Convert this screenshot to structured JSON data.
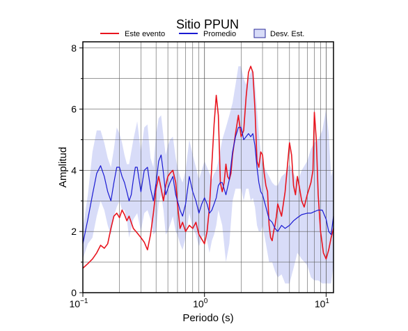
{
  "chart_data": {
    "type": "line",
    "title": "Sitio PPUN",
    "xlabel": "Periodo (s)",
    "ylabel": "Amplitud",
    "xscale": "log",
    "xlim": [
      0.1,
      11.5
    ],
    "ylim": [
      0,
      8.2
    ],
    "x_ticks": [
      {
        "value": 0.1,
        "base": "10",
        "exp": "−1"
      },
      {
        "value": 1,
        "base": "10",
        "exp": "0"
      },
      {
        "value": 10,
        "base": "10",
        "exp": "1"
      }
    ],
    "y_ticks": [
      0,
      2,
      4,
      6,
      8
    ],
    "grid": true,
    "legend_position": "top",
    "legend": [
      "Este evento",
      "Promedio",
      "Desv. Est."
    ],
    "colors": {
      "este_evento": "#e8141e",
      "promedio": "#1a1ad2",
      "desv_est": "#d8dcf8",
      "desv_est_border": "#2a2a9a"
    },
    "series": [
      {
        "name": "Este evento",
        "x": [
          0.1,
          0.11,
          0.12,
          0.13,
          0.14,
          0.15,
          0.16,
          0.17,
          0.18,
          0.19,
          0.2,
          0.21,
          0.22,
          0.23,
          0.24,
          0.26,
          0.28,
          0.3,
          0.32,
          0.34,
          0.36,
          0.38,
          0.4,
          0.42,
          0.44,
          0.46,
          0.48,
          0.5,
          0.52,
          0.55,
          0.58,
          0.6,
          0.63,
          0.66,
          0.7,
          0.75,
          0.8,
          0.85,
          0.9,
          0.95,
          1.0,
          1.05,
          1.1,
          1.15,
          1.2,
          1.25,
          1.3,
          1.35,
          1.4,
          1.45,
          1.5,
          1.55,
          1.6,
          1.65,
          1.7,
          1.8,
          1.9,
          2.0,
          2.1,
          2.2,
          2.3,
          2.4,
          2.5,
          2.6,
          2.7,
          2.8,
          2.9,
          3.0,
          3.1,
          3.2,
          3.3,
          3.4,
          3.5,
          3.6,
          3.7,
          3.8,
          3.9,
          4.0,
          4.3,
          4.6,
          5.0,
          5.2,
          5.4,
          5.6,
          5.8,
          6.0,
          6.3,
          6.6,
          7.0,
          7.5,
          7.8,
          8.0,
          8.3,
          8.6,
          9.0,
          9.5,
          10.0,
          10.5,
          11.0,
          11.5
        ],
        "values": [
          0.8,
          0.95,
          1.1,
          1.3,
          1.55,
          1.45,
          1.6,
          2.1,
          2.5,
          2.6,
          2.45,
          2.7,
          2.55,
          2.35,
          2.5,
          2.1,
          1.95,
          1.8,
          1.65,
          1.4,
          1.9,
          2.6,
          3.4,
          3.8,
          3.4,
          3.0,
          3.5,
          3.8,
          3.9,
          4.0,
          3.6,
          2.9,
          2.1,
          2.3,
          2.0,
          2.2,
          2.1,
          2.3,
          1.9,
          1.75,
          1.6,
          2.0,
          2.8,
          4.2,
          5.5,
          6.45,
          5.8,
          3.6,
          3.3,
          3.6,
          4.2,
          3.8,
          3.7,
          3.9,
          4.5,
          5.2,
          5.8,
          5.1,
          5.3,
          6.4,
          7.2,
          7.4,
          7.2,
          6.0,
          4.3,
          4.1,
          4.6,
          4.5,
          3.9,
          3.5,
          3.3,
          2.2,
          1.8,
          1.7,
          2.0,
          2.2,
          2.5,
          2.9,
          2.5,
          3.3,
          4.9,
          4.5,
          3.5,
          3.2,
          3.8,
          3.5,
          3.0,
          2.8,
          3.2,
          3.6,
          4.0,
          5.9,
          5.0,
          3.2,
          2.0,
          1.3,
          1.1,
          1.4,
          1.8,
          2.1
        ]
      },
      {
        "name": "Promedio",
        "x": [
          0.1,
          0.11,
          0.12,
          0.13,
          0.14,
          0.15,
          0.16,
          0.17,
          0.18,
          0.19,
          0.2,
          0.21,
          0.22,
          0.23,
          0.24,
          0.25,
          0.26,
          0.27,
          0.28,
          0.3,
          0.32,
          0.34,
          0.36,
          0.38,
          0.4,
          0.42,
          0.44,
          0.46,
          0.48,
          0.5,
          0.52,
          0.55,
          0.58,
          0.6,
          0.63,
          0.66,
          0.7,
          0.75,
          0.8,
          0.85,
          0.9,
          0.95,
          1.0,
          1.05,
          1.1,
          1.15,
          1.2,
          1.25,
          1.3,
          1.35,
          1.4,
          1.5,
          1.6,
          1.7,
          1.8,
          1.9,
          2.0,
          2.1,
          2.2,
          2.3,
          2.4,
          2.5,
          2.6,
          2.7,
          2.8,
          2.9,
          3.0,
          3.2,
          3.4,
          3.6,
          3.8,
          4.0,
          4.3,
          4.6,
          5.0,
          5.4,
          5.8,
          6.3,
          7.0,
          7.5,
          8.0,
          8.6,
          9.3,
          10.0,
          10.5,
          11.0,
          11.5
        ],
        "values": [
          1.6,
          2.4,
          3.2,
          3.9,
          4.15,
          3.8,
          3.3,
          3.0,
          3.6,
          4.1,
          4.1,
          3.8,
          3.6,
          3.3,
          3.0,
          3.2,
          3.7,
          4.1,
          4.1,
          3.3,
          4.0,
          4.1,
          3.4,
          3.0,
          3.6,
          4.3,
          4.5,
          3.9,
          3.2,
          3.4,
          3.6,
          3.8,
          3.2,
          3.0,
          2.7,
          2.5,
          2.9,
          3.8,
          3.3,
          3.0,
          2.6,
          2.9,
          3.1,
          2.9,
          2.6,
          2.7,
          2.9,
          3.1,
          3.5,
          3.6,
          3.6,
          3.2,
          3.7,
          4.6,
          5.1,
          5.4,
          5.4,
          5.0,
          5.1,
          5.2,
          5.1,
          5.2,
          4.8,
          4.1,
          3.6,
          3.3,
          3.2,
          2.8,
          2.4,
          2.3,
          2.1,
          2.0,
          2.2,
          2.1,
          2.2,
          2.35,
          2.45,
          2.55,
          2.6,
          2.6,
          2.65,
          2.7,
          2.7,
          2.4,
          2.0,
          1.9,
          2.5
        ]
      },
      {
        "name": "Desv. Est.",
        "type": "band",
        "x": [
          0.1,
          0.11,
          0.12,
          0.13,
          0.14,
          0.15,
          0.16,
          0.17,
          0.18,
          0.19,
          0.2,
          0.21,
          0.22,
          0.23,
          0.24,
          0.26,
          0.28,
          0.3,
          0.32,
          0.34,
          0.36,
          0.38,
          0.4,
          0.42,
          0.44,
          0.46,
          0.48,
          0.5,
          0.52,
          0.55,
          0.58,
          0.6,
          0.63,
          0.66,
          0.7,
          0.75,
          0.8,
          0.85,
          0.9,
          0.95,
          1.0,
          1.05,
          1.1,
          1.15,
          1.2,
          1.25,
          1.3,
          1.4,
          1.5,
          1.6,
          1.7,
          1.8,
          1.9,
          2.0,
          2.1,
          2.2,
          2.3,
          2.4,
          2.5,
          2.6,
          2.7,
          2.8,
          2.9,
          3.0,
          3.2,
          3.4,
          3.6,
          3.8,
          4.0,
          4.3,
          4.6,
          5.0,
          5.4,
          5.8,
          6.3,
          7.0,
          7.5,
          8.0,
          8.6,
          9.3,
          10.0,
          10.5,
          11.0,
          11.5
        ],
        "upper": [
          2.1,
          3.2,
          4.6,
          5.3,
          5.3,
          4.9,
          4.4,
          4.1,
          4.7,
          5.4,
          5.2,
          4.9,
          4.5,
          4.2,
          4.2,
          5.0,
          5.6,
          4.6,
          5.4,
          5.5,
          4.4,
          4.1,
          5.2,
          5.7,
          5.8,
          5.1,
          4.5,
          4.8,
          5.0,
          5.1,
          4.4,
          4.1,
          3.8,
          3.6,
          4.0,
          5.0,
          4.5,
          4.1,
          3.7,
          4.0,
          4.3,
          4.1,
          3.9,
          3.7,
          3.9,
          4.0,
          4.3,
          5.0,
          5.4,
          5.8,
          6.2,
          6.8,
          7.4,
          7.4,
          7.0,
          6.8,
          7.0,
          7.2,
          7.3,
          6.8,
          6.0,
          5.2,
          4.6,
          4.2,
          4.0,
          3.8,
          3.6,
          3.5,
          3.5,
          3.8,
          3.9,
          4.2,
          3.9,
          3.6,
          4.0,
          4.3,
          4.7,
          4.9,
          5.0,
          5.3,
          6.0,
          5.2,
          3.8,
          4.1
        ]
      }
    ]
  }
}
